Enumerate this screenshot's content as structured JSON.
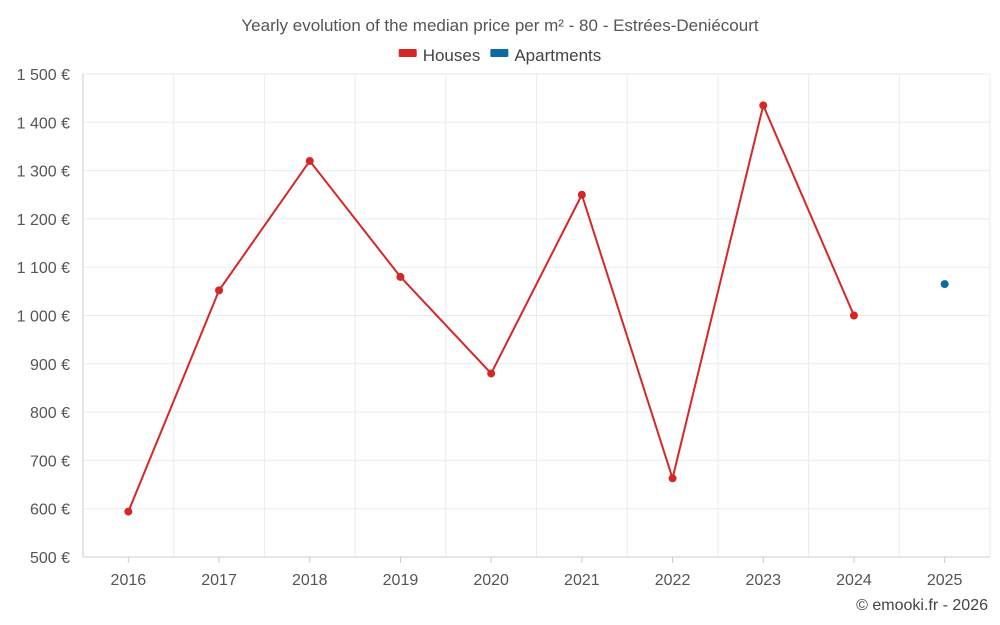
{
  "chart_data": {
    "type": "line",
    "title": "Yearly evolution of the median price per m² - 80 - Estrées-Deniécourt",
    "categories": [
      "2016",
      "2017",
      "2018",
      "2019",
      "2020",
      "2021",
      "2022",
      "2023",
      "2024",
      "2025"
    ],
    "series": [
      {
        "name": "Houses",
        "color": "#d62728",
        "values": [
          594,
          1052,
          1320,
          1080,
          880,
          1250,
          663,
          1435,
          1000,
          null
        ]
      },
      {
        "name": "Apartments",
        "color": "#0a6aa1",
        "values": [
          null,
          null,
          null,
          null,
          null,
          null,
          null,
          null,
          null,
          1065
        ]
      }
    ],
    "ylim": [
      500,
      1500
    ],
    "yticks": [
      500,
      600,
      700,
      800,
      900,
      1000,
      1100,
      1200,
      1300,
      1400,
      1500
    ],
    "ytick_labels": [
      "500 €",
      "600 €",
      "700 €",
      "800 €",
      "900 €",
      "1 000 €",
      "1 100 €",
      "1 200 €",
      "1 300 €",
      "1 400 €",
      "1 500 €"
    ],
    "xlabel": "",
    "ylabel": "",
    "grid": true,
    "legend_position": "top-center"
  },
  "credit": "© emooki.fr - 2026"
}
